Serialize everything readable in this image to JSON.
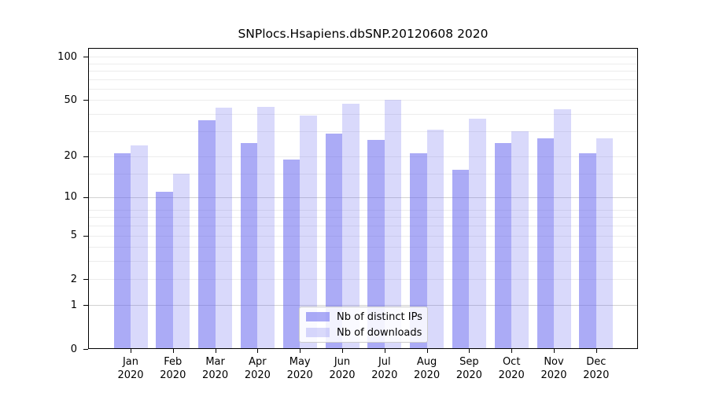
{
  "chart_data": {
    "type": "bar",
    "title": "SNPlocs.Hsapiens.dbSNP.20120608 2020",
    "categories": [
      "Jan 2020",
      "Feb 2020",
      "Mar 2020",
      "Apr 2020",
      "May 2020",
      "Jun 2020",
      "Jul 2020",
      "Aug 2020",
      "Sep 2020",
      "Oct 2020",
      "Nov 2020",
      "Dec 2020"
    ],
    "series": [
      {
        "name": "Nb of distinct IPs",
        "values": [
          21,
          11,
          36,
          25,
          19,
          29,
          26,
          21,
          16,
          25,
          27,
          21
        ]
      },
      {
        "name": "Nb of downloads",
        "values": [
          24,
          15,
          44,
          45,
          39,
          47,
          50,
          31,
          37,
          30,
          43,
          27
        ]
      }
    ],
    "yscale": "log1p",
    "y_tick_labels": [
      "100",
      "50",
      "20",
      "10",
      "5",
      "2",
      "1",
      "0"
    ],
    "y_tick_values": [
      100,
      50,
      20,
      10,
      5,
      2,
      1,
      0
    ],
    "ylim": [
      0,
      115
    ],
    "grid": "horizontal",
    "legend_position": "bottom-center",
    "colors": {
      "distinct_ips_fill": "rgba(102,102,238,0.55)",
      "downloads_fill": "rgba(102,102,238,0.25)",
      "grid_minor": "#ececec",
      "grid_major": "#d2d2d2",
      "axis": "#000000",
      "text": "#000000",
      "legend_border": "#cccccc"
    }
  }
}
